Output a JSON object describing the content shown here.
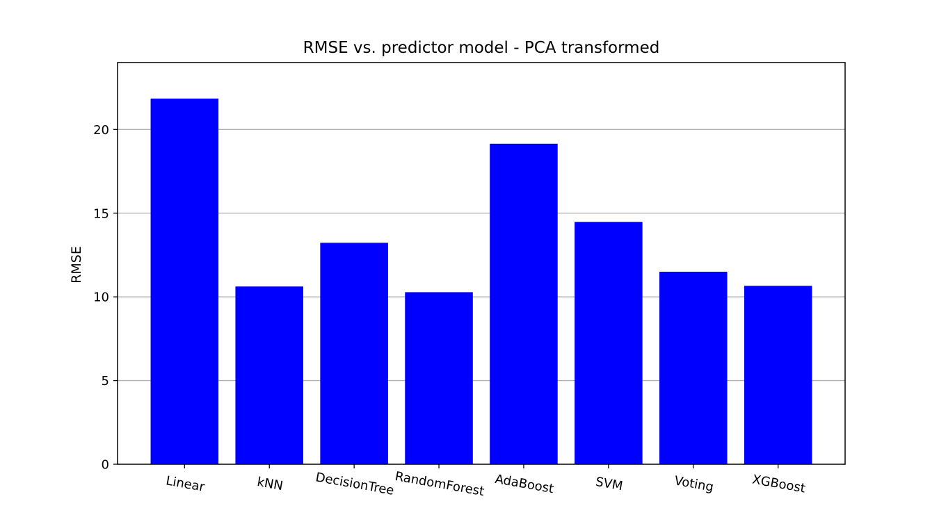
{
  "chart_data": {
    "type": "bar",
    "title": "RMSE vs. predictor model - PCA transformed",
    "xlabel": "",
    "ylabel": "RMSE",
    "categories": [
      "Linear",
      "kNN",
      "DecisionTree",
      "RandomForest",
      "AdaBoost",
      "SVM",
      "Voting",
      "XGBoost"
    ],
    "values": [
      21.85,
      10.62,
      13.23,
      10.28,
      19.15,
      14.48,
      11.5,
      10.66
    ],
    "ylim": [
      0,
      24
    ],
    "yticks": [
      0,
      5,
      10,
      15,
      20
    ],
    "grid": {
      "y": true,
      "x": false
    },
    "bar_color": "#0000ff",
    "grid_color": "#b0b0b0",
    "xtick_rotation_deg": 10
  }
}
